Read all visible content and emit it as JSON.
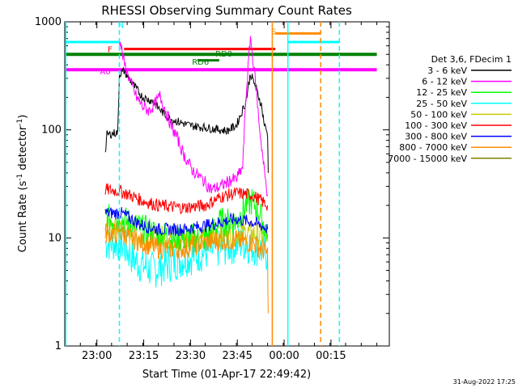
{
  "chart_data": {
    "type": "line",
    "title": "RHESSI Observing Summary Count Rates",
    "ylabel_main": "Count Rate (s",
    "ylabel_sup": "-1",
    "ylabel_rest": " detector",
    "ylabel_end": ")",
    "xlabel": "Start Time (01-Apr-17 22:49:42)",
    "date_stamp": "31-Aug-2022 17:25",
    "ylog": true,
    "ylim": [
      1,
      1000
    ],
    "xlim_min": [
      0,
      104
    ],
    "yticks": [
      {
        "v": 1,
        "label": "1"
      },
      {
        "v": 10,
        "label": "10"
      },
      {
        "v": 100,
        "label": "100"
      },
      {
        "v": 1000,
        "label": "1000"
      }
    ],
    "xticks": [
      {
        "t": 10.3,
        "label": "23:00"
      },
      {
        "t": 25.3,
        "label": "23:15"
      },
      {
        "t": 40.3,
        "label": "23:30"
      },
      {
        "t": 55.3,
        "label": "23:45"
      },
      {
        "t": 70.3,
        "label": "00:00"
      },
      {
        "t": 85.3,
        "label": "00:15"
      }
    ],
    "legend_title": "Det 3,6, FDecim 1",
    "legend_position": "right",
    "series": [
      {
        "name": "3 - 6 keV",
        "color": "#000000",
        "points": [
          [
            13,
            60
          ],
          [
            13.5,
            90
          ],
          [
            17,
            95
          ],
          [
            17.5,
            330
          ],
          [
            19,
            350
          ],
          [
            22,
            260
          ],
          [
            25,
            200
          ],
          [
            28,
            185
          ],
          [
            30,
            160
          ],
          [
            33,
            130
          ],
          [
            36,
            120
          ],
          [
            40,
            110
          ],
          [
            45,
            105
          ],
          [
            50,
            100
          ],
          [
            52,
            98
          ],
          [
            55,
            110
          ],
          [
            58,
            180
          ],
          [
            59.5,
            330
          ],
          [
            61,
            260
          ],
          [
            63,
            170
          ],
          [
            64,
            110
          ],
          [
            65,
            92
          ],
          [
            65.2,
            40
          ]
        ]
      },
      {
        "name": "6 - 12 keV",
        "color": "#ff00ff",
        "points": [
          [
            17.5,
            720
          ],
          [
            19,
            420
          ],
          [
            21,
            280
          ],
          [
            23,
            200
          ],
          [
            25,
            165
          ],
          [
            27,
            150
          ],
          [
            29,
            175
          ],
          [
            30.5,
            205
          ],
          [
            32,
            160
          ],
          [
            34,
            110
          ],
          [
            36,
            85
          ],
          [
            38,
            60
          ],
          [
            41,
            42
          ],
          [
            44,
            35
          ],
          [
            47,
            28
          ],
          [
            50,
            30
          ],
          [
            53,
            34
          ],
          [
            55,
            35
          ],
          [
            57,
            45
          ],
          [
            58,
            190
          ],
          [
            59.5,
            730
          ],
          [
            61,
            300
          ],
          [
            62.5,
            100
          ],
          [
            64,
            40
          ],
          [
            65,
            25
          ]
        ]
      },
      {
        "name": "12 - 25 keV",
        "color": "#00ff00",
        "points": [
          [
            13,
            15
          ],
          [
            18,
            15
          ],
          [
            25,
            12
          ],
          [
            35,
            10
          ],
          [
            45,
            10
          ],
          [
            50,
            14
          ],
          [
            55,
            14
          ],
          [
            58,
            20
          ],
          [
            60,
            22
          ],
          [
            62,
            18
          ],
          [
            65,
            11
          ]
        ]
      },
      {
        "name": "25 - 50 keV",
        "color": "#00ffff",
        "points": [
          [
            13,
            9
          ],
          [
            18,
            9
          ],
          [
            23,
            6
          ],
          [
            28,
            5
          ],
          [
            35,
            6
          ],
          [
            42,
            7
          ],
          [
            50,
            8
          ],
          [
            57,
            9
          ],
          [
            62,
            8
          ],
          [
            65,
            7
          ]
        ]
      },
      {
        "name": "50 - 100 keV",
        "color": "#cccc00",
        "points": [
          [
            13,
            12
          ],
          [
            18,
            12
          ],
          [
            25,
            10
          ],
          [
            35,
            10
          ],
          [
            45,
            10.5
          ],
          [
            55,
            11
          ],
          [
            60,
            11
          ],
          [
            65,
            10
          ]
        ]
      },
      {
        "name": "100 - 300 keV",
        "color": "#ff0000",
        "points": [
          [
            13,
            28
          ],
          [
            18,
            27
          ],
          [
            25,
            22
          ],
          [
            30,
            20
          ],
          [
            38,
            19
          ],
          [
            45,
            20
          ],
          [
            50,
            24
          ],
          [
            55,
            26
          ],
          [
            60,
            25
          ],
          [
            63,
            22
          ],
          [
            65,
            20
          ]
        ]
      },
      {
        "name": "300 - 800 keV",
        "color": "#0000ff",
        "points": [
          [
            13,
            17
          ],
          [
            18,
            17
          ],
          [
            25,
            13
          ],
          [
            30,
            12
          ],
          [
            38,
            12
          ],
          [
            45,
            13
          ],
          [
            50,
            14
          ],
          [
            55,
            15
          ],
          [
            60,
            14
          ],
          [
            63,
            13
          ],
          [
            65,
            12
          ]
        ]
      },
      {
        "name": "800 - 7000 keV",
        "color": "#ff8c00",
        "points": [
          [
            13,
            11
          ],
          [
            18,
            11
          ],
          [
            25,
            9
          ],
          [
            30,
            8
          ],
          [
            38,
            8
          ],
          [
            45,
            9
          ],
          [
            50,
            9.5
          ],
          [
            55,
            9.5
          ],
          [
            60,
            9
          ],
          [
            63,
            8
          ],
          [
            65,
            7
          ],
          [
            65.2,
            2
          ]
        ]
      },
      {
        "name": "7000 - 15000 keV",
        "color": "#808000",
        "points": []
      }
    ],
    "vlines": [
      {
        "t": 0.3,
        "color": "#00ffff",
        "dash": false
      },
      {
        "t": 17.5,
        "color": "#00ffff",
        "dash": true
      },
      {
        "t": 66.5,
        "color": "#ff8c00",
        "dash": false
      },
      {
        "t": 71.5,
        "color": "#00ffff",
        "dash": false
      },
      {
        "t": 82,
        "color": "#ff8c00",
        "dash": true
      },
      {
        "t": 88,
        "color": "#00ffff",
        "dash": true
      }
    ],
    "flagbars": [
      {
        "t0": 0.3,
        "t1": 17.5,
        "y": 650,
        "color": "#00ffff",
        "width": 3,
        "label": ""
      },
      {
        "t0": 71.5,
        "t1": 88,
        "y": 650,
        "color": "#00ffff",
        "width": 3,
        "label": ""
      },
      {
        "t0": 0.3,
        "t1": 100,
        "y": 500,
        "color": "#008000",
        "width": 4,
        "label": ""
      },
      {
        "t0": 0.3,
        "t1": 100,
        "y": 360,
        "color": "#ff00ff",
        "width": 4,
        "label": ""
      },
      {
        "t0": 19,
        "t1": 67.5,
        "y": 560,
        "color": "#ff0000",
        "width": 3,
        "label": ""
      },
      {
        "t0": 67.5,
        "t1": 82,
        "y": 780,
        "color": "#ff8c00",
        "width": 3,
        "label": ""
      },
      {
        "t0": 42.5,
        "t1": 49.5,
        "y": 440,
        "color": "#008000",
        "width": 3,
        "label": ""
      }
    ],
    "flaglabels": [
      {
        "t": 18,
        "y": 940,
        "text": "N",
        "color": "#00ffff"
      },
      {
        "t": 14.5,
        "y": 560,
        "text": "F",
        "color": "#ff0000"
      },
      {
        "t": 51,
        "y": 510,
        "text": "RD0",
        "color": "#008000"
      },
      {
        "t": 43.5,
        "y": 430,
        "text": "RD6",
        "color": "#008000"
      },
      {
        "t": 13,
        "y": 350,
        "text": "A0",
        "color": "#ff00ff"
      },
      {
        "t": 67,
        "y": 820,
        "text": "S",
        "color": "#ff8c00"
      }
    ]
  }
}
